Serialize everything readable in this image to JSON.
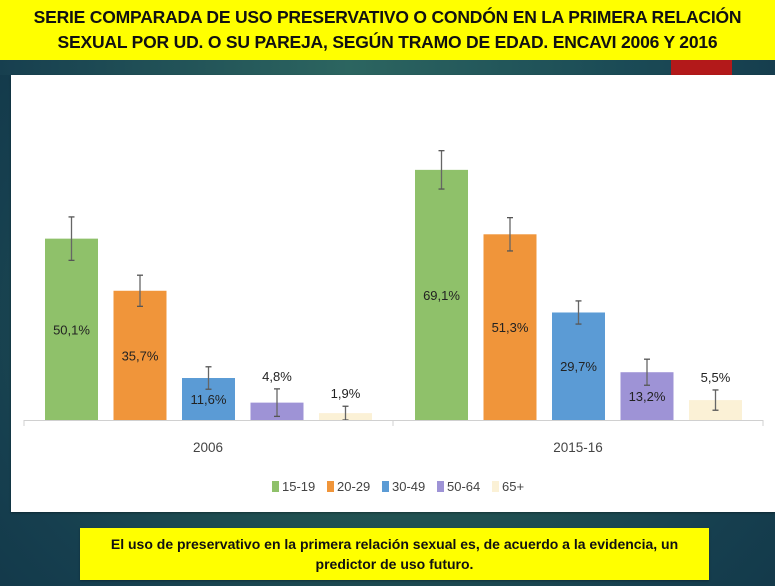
{
  "header": {
    "title_line1": "SERIE COMPARADA DE USO PRESERVATIVO O CONDÓN EN LA PRIMERA RELACIÓN",
    "title_line2": "SEXUAL POR UD. O SU PAREJA, SEGÚN TRAMO DE EDAD. ENCAVI 2006 Y 2016"
  },
  "footer": {
    "note": "El uso de preservativo en la primera relación sexual es, de acuerdo a la evidencia, un predictor de uso futuro."
  },
  "colors": {
    "title_bg": "#ffff00",
    "accent_red": "#b3191a"
  },
  "chart_data": {
    "type": "bar",
    "title": "",
    "xlabel": "",
    "ylabel": "",
    "ylim": [
      0,
      80
    ],
    "grid": false,
    "legend_position": "bottom",
    "categories": [
      "2006",
      "2015-16"
    ],
    "series": [
      {
        "name": "15-19",
        "color": "#8fc16a",
        "values": [
          50.1,
          69.1
        ],
        "labels": [
          "50,1%",
          "69,1%"
        ],
        "error": [
          6.0,
          5.3
        ],
        "label_inside": [
          true,
          true
        ]
      },
      {
        "name": "20-29",
        "color": "#f0953a",
        "values": [
          35.7,
          51.3
        ],
        "labels": [
          "35,7%",
          "51,3%"
        ],
        "error": [
          4.3,
          4.6
        ],
        "label_inside": [
          true,
          true
        ]
      },
      {
        "name": "30-49",
        "color": "#5b9bd5",
        "values": [
          11.6,
          29.7
        ],
        "labels": [
          "11,6%",
          "29,7%"
        ],
        "error": [
          3.1,
          3.2
        ],
        "label_inside": [
          true,
          true
        ]
      },
      {
        "name": "50-64",
        "color": "#9e93d6",
        "values": [
          4.8,
          13.2
        ],
        "labels": [
          "4,8%",
          "13,2%"
        ],
        "error": [
          3.8,
          3.6
        ],
        "label_inside": [
          false,
          true
        ]
      },
      {
        "name": "65+",
        "color": "#fbf1d6",
        "values": [
          1.9,
          5.5
        ],
        "labels": [
          "1,9%",
          "5,5%"
        ],
        "error": [
          1.9,
          2.8
        ],
        "label_inside": [
          false,
          false
        ]
      }
    ]
  }
}
